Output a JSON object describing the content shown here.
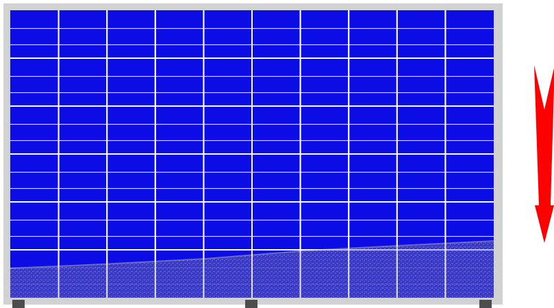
{
  "panel": {
    "columns": 10,
    "rows": 6,
    "frame_color": "#d2d2d2",
    "cell_color": "#0c0ce4",
    "gridline_color": "#ffffff",
    "feet_color": "#4d4d4d",
    "feet_count": 3
  },
  "dirt": {
    "color": "#6a6a8c",
    "description_shape": "sediment accumulated along lower edge, thicker on right"
  },
  "arrow": {
    "direction": "down",
    "color": "#ff0000",
    "icon": "arrow-down-icon"
  }
}
